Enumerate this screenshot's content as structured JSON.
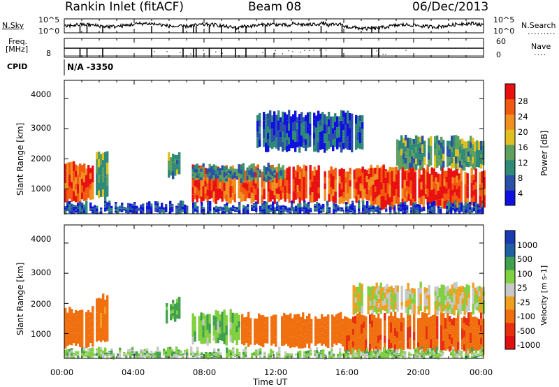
{
  "header": {
    "station": "Rankin Inlet (fitACF)",
    "beam": "Beam 08",
    "date": "06/Dec/2013"
  },
  "noise_panel": {
    "left_label": "N.Sky",
    "right_label": "N.Search",
    "left_ticks": [
      "10^5",
      "10^0"
    ],
    "right_ticks": [
      "10^5",
      "10^0"
    ]
  },
  "freq_panel": {
    "left_label_1": "Freq.",
    "left_label_2": "[MHz]",
    "right_label": "Nave",
    "left_ticks": [
      "8"
    ],
    "right_ticks": [
      "60",
      "0"
    ],
    "spike_hours": [
      0.9,
      1.3,
      2.2,
      5.0,
      6.8,
      7.4,
      7.55,
      8.3,
      9.0,
      9.8,
      10.4,
      11.5,
      14.7,
      15.9,
      17.6,
      18.0
    ]
  },
  "cpid": {
    "label": "CPID",
    "value": "N/A -3350"
  },
  "colors": {
    "power_scale": [
      "#1010e0",
      "#2a50a8",
      "#2f8a78",
      "#5fa060",
      "#e0c020",
      "#f09020",
      "#f25a10",
      "#e81010"
    ],
    "velocity_scale": [
      "#1a3ab0",
      "#2060a0",
      "#40a050",
      "#80d040",
      "#c8c8c8",
      "#f0a020",
      "#f07010",
      "#e83010",
      "#e01010"
    ]
  },
  "chart_data": [
    {
      "type": "heatmap",
      "name": "Power",
      "xlabel": "",
      "ylabel": "Slant Range [km]",
      "xlim": [
        0,
        24
      ],
      "ylim": [
        180,
        4600
      ],
      "yticks": [
        "1000",
        "2000",
        "3000",
        "4000"
      ],
      "colorbar": {
        "label": "Power [dB]",
        "range": [
          0,
          32
        ],
        "ticks": [
          "4",
          "8",
          "12",
          "16",
          "20",
          "24",
          "28"
        ]
      },
      "echo_regions": [
        {
          "t0": 0.0,
          "t1": 1.6,
          "r0": 600,
          "r1": 1800,
          "level": 26
        },
        {
          "t0": 1.8,
          "t1": 2.5,
          "r0": 700,
          "r1": 2200,
          "level": 14
        },
        {
          "t0": 5.8,
          "t1": 6.6,
          "r0": 1400,
          "r1": 2100,
          "level": 12
        },
        {
          "t0": 7.3,
          "t1": 20.8,
          "r0": 600,
          "r1": 1700,
          "level": 27
        },
        {
          "t0": 7.3,
          "t1": 12.5,
          "r0": 1300,
          "r1": 1750,
          "level": 10
        },
        {
          "t0": 11.0,
          "t1": 17.0,
          "r0": 2300,
          "r1": 3500,
          "level": 6
        },
        {
          "t0": 19.0,
          "t1": 24.0,
          "r0": 1700,
          "r1": 2700,
          "level": 12
        },
        {
          "t0": 17.5,
          "t1": 24.0,
          "r0": 400,
          "r1": 1600,
          "level": 28
        },
        {
          "t0": 0.0,
          "t1": 24.0,
          "r0": 180,
          "r1": 500,
          "level": 5
        }
      ]
    },
    {
      "type": "heatmap",
      "name": "Velocity",
      "xlabel": "Time UT",
      "ylabel": "Slant Range [km]",
      "xlim": [
        0,
        24
      ],
      "ylim": [
        180,
        4600
      ],
      "yticks": [
        "1000",
        "2000",
        "3000",
        "4000"
      ],
      "xticks": [
        "00:00",
        "04:00",
        "08:00",
        "12:00",
        "16:00",
        "20:00",
        "00:00"
      ],
      "colorbar": {
        "label": "Velocity [m s-1]",
        "ticks": [
          "1000",
          "500",
          "100",
          "25",
          "-25",
          "-100",
          "-500",
          "-1000"
        ]
      },
      "echo_regions": [
        {
          "t0": 0.0,
          "t1": 1.6,
          "r0": 600,
          "r1": 1800,
          "level": -300
        },
        {
          "t0": 1.8,
          "t1": 2.5,
          "r0": 700,
          "r1": 2200,
          "level": -150
        },
        {
          "t0": 5.8,
          "t1": 6.6,
          "r0": 1400,
          "r1": 2100,
          "level": 150
        },
        {
          "t0": 7.3,
          "t1": 10.0,
          "r0": 700,
          "r1": 1700,
          "level": 80
        },
        {
          "t0": 10.0,
          "t1": 16.0,
          "r0": 600,
          "r1": 1600,
          "level": -200
        },
        {
          "t0": 16.0,
          "t1": 24.0,
          "r0": 400,
          "r1": 1600,
          "level": -400
        },
        {
          "t0": 16.5,
          "t1": 24.0,
          "r0": 1700,
          "r1": 2600,
          "level": 0
        },
        {
          "t0": 0.0,
          "t1": 24.0,
          "r0": 180,
          "r1": 450,
          "level": 60
        }
      ]
    }
  ]
}
